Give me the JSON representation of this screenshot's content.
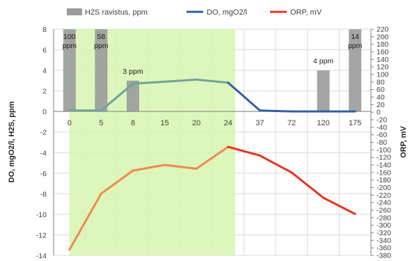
{
  "chart_data": {
    "type": "bar+line",
    "categories": [
      "0",
      "5",
      "8",
      "15",
      "20",
      "24",
      "37",
      "72",
      "120",
      "175"
    ],
    "series": [
      {
        "name": "H2S ravistus, ppm",
        "type": "bar",
        "axis": "left",
        "values": [
          8,
          8,
          3,
          null,
          null,
          null,
          null,
          null,
          4,
          8
        ]
      },
      {
        "name": "DO, mgO2/l",
        "type": "line",
        "axis": "left",
        "values": [
          0.1,
          0.1,
          2.7,
          2.9,
          3.1,
          2.8,
          0.1,
          0.0,
          0.0,
          0.0
        ]
      },
      {
        "name": "ORP, mV",
        "type": "line",
        "axis": "right",
        "values": [
          -365,
          -216,
          -155,
          -140,
          -150,
          -92,
          -115,
          -160,
          -227,
          -270
        ]
      }
    ],
    "bar_labels": [
      "100\nppm",
      "58\nppm",
      "3 ppm",
      "",
      "",
      "",
      "",
      "",
      "4 ppm",
      "14\nppm"
    ],
    "highlight_range": {
      "from": "0",
      "to": "24"
    },
    "ylabel": "DO, mgO2/l, H2S, ppm",
    "y2label": "ORP, mV",
    "ylim": [
      -14,
      8
    ],
    "y_ticks": [
      8,
      6,
      4,
      2,
      0,
      -2,
      -4,
      -6,
      -8,
      -10,
      -12,
      -14
    ],
    "y2lim": [
      -380,
      220
    ],
    "y2_ticks": [
      220,
      200,
      180,
      160,
      140,
      120,
      100,
      80,
      60,
      40,
      20,
      0,
      -20,
      -40,
      -60,
      -80,
      -100,
      -120,
      -140,
      -160,
      -180,
      -200,
      -220,
      -240,
      -260,
      -280,
      -300,
      -320,
      -340,
      -360,
      -380
    ],
    "grid": true,
    "legend_position": "top",
    "colors": {
      "bars": "#9b9b9b",
      "do": "#2e5fa8",
      "do_highlight": "#6fa29c",
      "orp": "#e8331c",
      "orp_highlight": "#f08a4b",
      "highlight": "#d6f5b0",
      "grid": "#d9d9d9"
    }
  }
}
